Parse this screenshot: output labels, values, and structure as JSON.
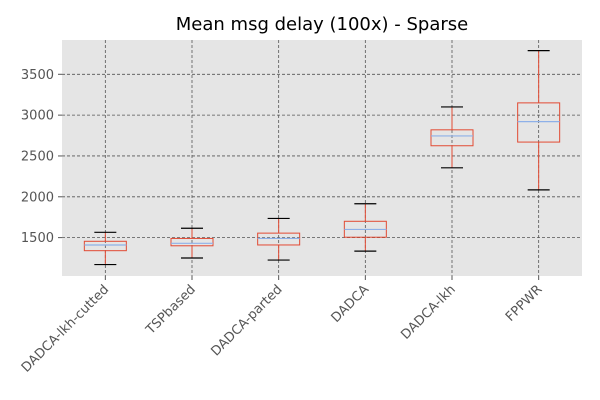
{
  "chart_data": {
    "type": "box",
    "title": "Mean msg delay (100x) - Sparse",
    "xlabel": "",
    "ylabel": "",
    "ylim": [
      1030,
      3920
    ],
    "yticks": [
      1500,
      2000,
      2500,
      3000,
      3500
    ],
    "grid": true,
    "legend": "none",
    "categories": [
      "DADCA-lkh-cutted",
      "TSPbased",
      "DADCA-parted",
      "DADCA",
      "DADCA-lkh",
      "FPPWR"
    ],
    "boxes": [
      {
        "whisker_low": 1170,
        "q1": 1340,
        "median": 1410,
        "q3": 1455,
        "whisker_high": 1565
      },
      {
        "whisker_low": 1250,
        "q1": 1400,
        "median": 1430,
        "q3": 1490,
        "whisker_high": 1615
      },
      {
        "whisker_low": 1225,
        "q1": 1410,
        "median": 1490,
        "q3": 1555,
        "whisker_high": 1735
      },
      {
        "whisker_low": 1335,
        "q1": 1505,
        "median": 1600,
        "q3": 1700,
        "whisker_high": 1915
      },
      {
        "whisker_low": 2355,
        "q1": 2625,
        "median": 2745,
        "q3": 2820,
        "whisker_high": 3100
      },
      {
        "whisker_low": 2085,
        "q1": 2670,
        "median": 2920,
        "q3": 3150,
        "whisker_high": 3790
      }
    ],
    "colors": {
      "background": "#e5e5e5",
      "grid": "#555555",
      "box": "#e24a33",
      "median": "#8eb0e8",
      "whisker_cap": "#000000"
    }
  }
}
